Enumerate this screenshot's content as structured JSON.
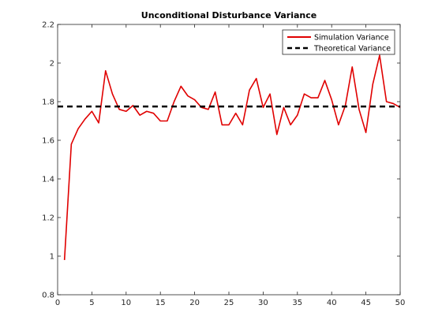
{
  "chart_data": {
    "type": "line",
    "title": "Unconditional Disturbance Variance",
    "xlabel": "",
    "ylabel": "",
    "xlim": [
      0,
      50
    ],
    "ylim": [
      0.8,
      2.2
    ],
    "xticks": [
      0,
      5,
      10,
      15,
      20,
      25,
      30,
      35,
      40,
      45,
      50
    ],
    "yticks": [
      0.8,
      1,
      1.2,
      1.4,
      1.6,
      1.8,
      2,
      2.2
    ],
    "grid": false,
    "legend_position": "top-right",
    "series": [
      {
        "name": "Simulation Variance",
        "color": "#e00000",
        "style": "solid",
        "x": [
          1,
          2,
          3,
          4,
          5,
          6,
          7,
          8,
          9,
          10,
          11,
          12,
          13,
          14,
          15,
          16,
          17,
          18,
          19,
          20,
          21,
          22,
          23,
          24,
          25,
          26,
          27,
          28,
          29,
          30,
          31,
          32,
          33,
          34,
          35,
          36,
          37,
          38,
          39,
          40,
          41,
          42,
          43,
          44,
          45,
          46,
          47,
          48,
          49,
          50
        ],
        "y": [
          0.98,
          1.58,
          1.66,
          1.71,
          1.75,
          1.69,
          1.96,
          1.84,
          1.76,
          1.75,
          1.78,
          1.73,
          1.75,
          1.74,
          1.7,
          1.7,
          1.8,
          1.88,
          1.83,
          1.81,
          1.77,
          1.76,
          1.85,
          1.68,
          1.68,
          1.74,
          1.68,
          1.86,
          1.92,
          1.77,
          1.84,
          1.63,
          1.77,
          1.68,
          1.73,
          1.84,
          1.82,
          1.82,
          1.91,
          1.81,
          1.68,
          1.78,
          1.98,
          1.76,
          1.64,
          1.89,
          2.04,
          1.8,
          1.79,
          1.77
        ]
      },
      {
        "name": "Theoretical Variance",
        "color": "#000000",
        "style": "dashed",
        "x": [
          0,
          50
        ],
        "y": [
          1.775,
          1.775
        ]
      }
    ]
  }
}
